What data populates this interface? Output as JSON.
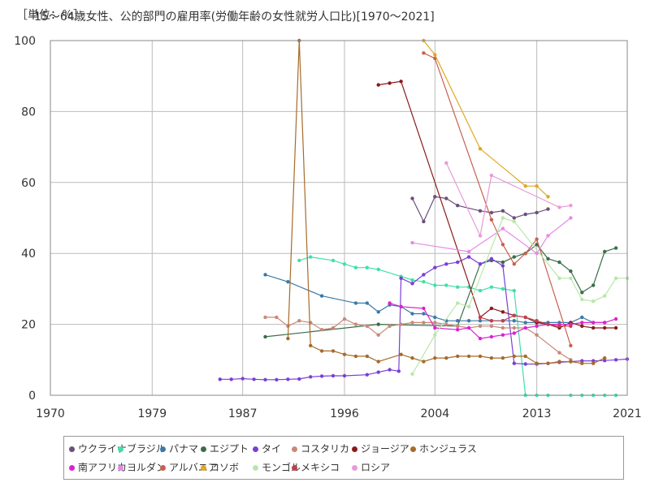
{
  "unit_label": "［単位：％］",
  "chart_data": {
    "type": "line",
    "title": "15～64歳女性、公的部門の雇用率(労働年齢の女性就労人口比)[1970～2021]",
    "xlim": [
      1970,
      2021
    ],
    "ylim": [
      0,
      100
    ],
    "x_ticks": [
      1970,
      1979,
      1987,
      1996,
      2004,
      2013,
      2021
    ],
    "y_ticks": [
      0,
      20,
      40,
      60,
      80,
      100
    ],
    "grid": true,
    "legend_position": "bottom",
    "series": [
      {
        "name": "ウクライナ",
        "color": "#6b4f7a",
        "points": [
          [
            2002,
            55.5
          ],
          [
            2003,
            49
          ],
          [
            2004,
            56
          ],
          [
            2005,
            55.5
          ],
          [
            2006,
            53.5
          ],
          [
            2008,
            52
          ],
          [
            2009,
            51.5
          ],
          [
            2010,
            52
          ],
          [
            2011,
            50
          ],
          [
            2012,
            51
          ],
          [
            2013,
            51.5
          ],
          [
            2014,
            52.5
          ]
        ]
      },
      {
        "name": "ブラジル",
        "color": "#40e0a8",
        "points": [
          [
            1992,
            38
          ],
          [
            1993,
            39
          ],
          [
            1995,
            38
          ],
          [
            1996,
            37
          ],
          [
            1997,
            36
          ],
          [
            1998,
            36
          ],
          [
            1999,
            35.5
          ],
          [
            2001,
            33.5
          ],
          [
            2002,
            32.5
          ],
          [
            2003,
            32
          ],
          [
            2004,
            31
          ],
          [
            2005,
            31
          ],
          [
            2006,
            30.5
          ],
          [
            2007,
            30.5
          ],
          [
            2008,
            29.5
          ],
          [
            2009,
            30.5
          ],
          [
            2010,
            30
          ],
          [
            2011,
            29.5
          ],
          [
            2012,
            0
          ],
          [
            2013,
            0
          ],
          [
            2014,
            0
          ],
          [
            2016,
            0
          ],
          [
            2017,
            0
          ],
          [
            2018,
            0
          ],
          [
            2019,
            0
          ],
          [
            2020,
            0
          ]
        ]
      },
      {
        "name": "パナマ",
        "color": "#3b7aa8",
        "points": [
          [
            1989,
            34
          ],
          [
            1991,
            32
          ],
          [
            1994,
            28
          ],
          [
            1997,
            26
          ],
          [
            1998,
            26
          ],
          [
            1999,
            23.5
          ],
          [
            2000,
            25.5
          ],
          [
            2001,
            25
          ],
          [
            2002,
            23
          ],
          [
            2003,
            23
          ],
          [
            2004,
            22
          ],
          [
            2005,
            21
          ],
          [
            2006,
            21
          ],
          [
            2007,
            21
          ],
          [
            2008,
            21
          ],
          [
            2009,
            21
          ],
          [
            2010,
            21
          ],
          [
            2011,
            21
          ],
          [
            2012,
            20.5
          ],
          [
            2013,
            20.5
          ],
          [
            2014,
            20.5
          ],
          [
            2015,
            20.5
          ],
          [
            2016,
            20.5
          ],
          [
            2017,
            22
          ],
          [
            2018,
            20.5
          ],
          [
            2019,
            20.5
          ]
        ]
      },
      {
        "name": "エジプト",
        "color": "#3a6e4a",
        "points": [
          [
            1989,
            16.5
          ],
          [
            1999,
            20
          ],
          [
            2006,
            19.5
          ],
          [
            2008,
            37
          ],
          [
            2009,
            38
          ],
          [
            2010,
            37.5
          ],
          [
            2011,
            39
          ],
          [
            2012,
            40
          ],
          [
            2013,
            42.5
          ],
          [
            2014,
            38.5
          ],
          [
            2015,
            37.5
          ],
          [
            2016,
            35
          ],
          [
            2017,
            29
          ],
          [
            2018,
            31
          ],
          [
            2019,
            40.5
          ],
          [
            2020,
            41.5
          ]
        ]
      },
      {
        "name": "タイ",
        "color": "#7a3fd6",
        "points": [
          [
            1985,
            4.5
          ],
          [
            1986,
            4.5
          ],
          [
            1987,
            4.7
          ],
          [
            1988,
            4.5
          ],
          [
            1989,
            4.4
          ],
          [
            1990,
            4.4
          ],
          [
            1991,
            4.5
          ],
          [
            1992,
            4.6
          ],
          [
            1993,
            5.2
          ],
          [
            1994,
            5.4
          ],
          [
            1995,
            5.5
          ],
          [
            1996,
            5.5
          ],
          [
            1998,
            5.8
          ],
          [
            1999,
            6.5
          ],
          [
            2000,
            7.2
          ],
          [
            2000.8,
            6.8
          ],
          [
            2001,
            33
          ],
          [
            2002,
            31.5
          ],
          [
            2003,
            34
          ],
          [
            2004,
            36
          ],
          [
            2005,
            37
          ],
          [
            2006,
            37.5
          ],
          [
            2007,
            39
          ],
          [
            2008,
            37
          ],
          [
            2009,
            38.5
          ],
          [
            2010,
            36.5
          ],
          [
            2011,
            9
          ],
          [
            2012,
            8.8
          ],
          [
            2013,
            8.8
          ],
          [
            2014,
            9
          ],
          [
            2015,
            9.3
          ],
          [
            2016,
            9.5
          ],
          [
            2017,
            9.7
          ],
          [
            2018,
            9.7
          ],
          [
            2019,
            9.8
          ],
          [
            2020,
            10
          ],
          [
            2021,
            10.2
          ]
        ]
      },
      {
        "name": "コスタリカ",
        "color": "#c98878",
        "points": [
          [
            1989,
            22
          ],
          [
            1990,
            22
          ],
          [
            1991,
            19.5
          ],
          [
            1992,
            21
          ],
          [
            1993,
            20.5
          ],
          [
            1994,
            18.5
          ],
          [
            1995,
            19
          ],
          [
            1996,
            21.5
          ],
          [
            1997,
            20
          ],
          [
            1998,
            19.5
          ],
          [
            1999,
            17
          ],
          [
            2000,
            19.5
          ],
          [
            2001,
            20
          ],
          [
            2002,
            20.5
          ],
          [
            2003,
            20.5
          ],
          [
            2004,
            20.5
          ],
          [
            2005,
            20
          ],
          [
            2006,
            19.5
          ],
          [
            2007,
            19
          ],
          [
            2008,
            19.5
          ],
          [
            2009,
            19.5
          ],
          [
            2010,
            19
          ],
          [
            2011,
            19
          ],
          [
            2012,
            19
          ],
          [
            2013,
            17
          ],
          [
            2015,
            12
          ],
          [
            2016,
            10
          ]
        ]
      },
      {
        "name": "ジョージア",
        "color": "#8b1a1a",
        "points": [
          [
            1999,
            87.5
          ],
          [
            2000,
            88
          ],
          [
            2001,
            88.5
          ],
          [
            2008,
            22
          ],
          [
            2009,
            24.5
          ],
          [
            2010,
            23.5
          ],
          [
            2011,
            22.5
          ],
          [
            2012,
            22
          ],
          [
            2013,
            20.5
          ],
          [
            2014,
            20
          ],
          [
            2015,
            19
          ],
          [
            2016,
            20.5
          ],
          [
            2017,
            19.5
          ],
          [
            2018,
            19
          ],
          [
            2019,
            19
          ],
          [
            2020,
            19
          ]
        ]
      },
      {
        "name": "ホンジュラス",
        "color": "#a66b2a",
        "points": [
          [
            1991,
            16
          ],
          [
            1992,
            100
          ],
          [
            1993,
            14
          ],
          [
            1994,
            12.5
          ],
          [
            1995,
            12.5
          ],
          [
            1996,
            11.5
          ],
          [
            1997,
            11
          ],
          [
            1998,
            11
          ],
          [
            1999,
            9.5
          ],
          [
            2001,
            11.5
          ],
          [
            2002,
            10.5
          ],
          [
            2003,
            9.5
          ],
          [
            2004,
            10.5
          ],
          [
            2005,
            10.5
          ],
          [
            2006,
            11
          ],
          [
            2007,
            11
          ],
          [
            2008,
            11
          ],
          [
            2009,
            10.5
          ],
          [
            2010,
            10.5
          ],
          [
            2011,
            11
          ],
          [
            2012,
            11
          ],
          [
            2013,
            9
          ],
          [
            2014,
            9
          ],
          [
            2015,
            9.5
          ],
          [
            2016,
            9.5
          ],
          [
            2017,
            9
          ],
          [
            2018,
            9
          ],
          [
            2019,
            10.5
          ]
        ]
      },
      {
        "name": "南アフリカ",
        "color": "#e020d0",
        "points": [
          [
            2000,
            26
          ],
          [
            2001,
            25
          ],
          [
            2003,
            24.5
          ],
          [
            2004,
            19
          ],
          [
            2006,
            18.5
          ],
          [
            2007,
            19
          ],
          [
            2008,
            16
          ],
          [
            2009,
            16.5
          ],
          [
            2010,
            17
          ],
          [
            2011,
            17.5
          ],
          [
            2012,
            19
          ],
          [
            2013,
            19.5
          ],
          [
            2014,
            20
          ],
          [
            2015,
            20
          ],
          [
            2016,
            20
          ],
          [
            2017,
            20.5
          ],
          [
            2018,
            20.5
          ],
          [
            2019,
            20.5
          ],
          [
            2020,
            21.5
          ]
        ]
      },
      {
        "name": "ヨルダン",
        "color": "#e68ae6",
        "points": [
          [
            2002,
            43
          ],
          [
            2007,
            40.5
          ],
          [
            2010,
            47
          ],
          [
            2013,
            40
          ],
          [
            2014,
            45
          ],
          [
            2016,
            50
          ]
        ]
      },
      {
        "name": "アルバニア",
        "color": "#c86050",
        "points": [
          [
            2003,
            96.5
          ],
          [
            2004,
            95
          ],
          [
            2009,
            49.5
          ],
          [
            2010,
            42.5
          ],
          [
            2011,
            37
          ],
          [
            2012,
            40
          ],
          [
            2013,
            44
          ],
          [
            2016,
            14
          ]
        ]
      },
      {
        "name": "コソボ",
        "color": "#e0a820",
        "points": [
          [
            2003,
            100
          ],
          [
            2004,
            96
          ],
          [
            2008,
            69.5
          ],
          [
            2012,
            59
          ],
          [
            2013,
            59
          ],
          [
            2014,
            56
          ]
        ]
      },
      {
        "name": "モンゴル",
        "color": "#b8e8a8",
        "points": [
          [
            2002,
            6
          ],
          [
            2004,
            17
          ],
          [
            2006,
            26
          ],
          [
            2007,
            25
          ],
          [
            2010,
            50
          ],
          [
            2011,
            49
          ],
          [
            2015,
            33
          ],
          [
            2016,
            33
          ],
          [
            2017,
            27
          ],
          [
            2018,
            26.5
          ],
          [
            2019,
            28
          ],
          [
            2020,
            33
          ],
          [
            2021,
            33
          ]
        ]
      },
      {
        "name": "メキシコ",
        "color": "#c0404a",
        "points": [
          [
            2008,
            22
          ],
          [
            2009,
            21
          ],
          [
            2010,
            21
          ],
          [
            2011,
            22.5
          ],
          [
            2012,
            22
          ],
          [
            2013,
            21
          ],
          [
            2014,
            20
          ],
          [
            2015,
            19.5
          ],
          [
            2016,
            19.5
          ]
        ]
      },
      {
        "name": "ロシア",
        "color": "#e89ad8",
        "points": [
          [
            2005,
            65.5
          ],
          [
            2008,
            45
          ],
          [
            2009,
            62
          ],
          [
            2015,
            53
          ],
          [
            2016,
            53.5
          ]
        ]
      }
    ]
  }
}
